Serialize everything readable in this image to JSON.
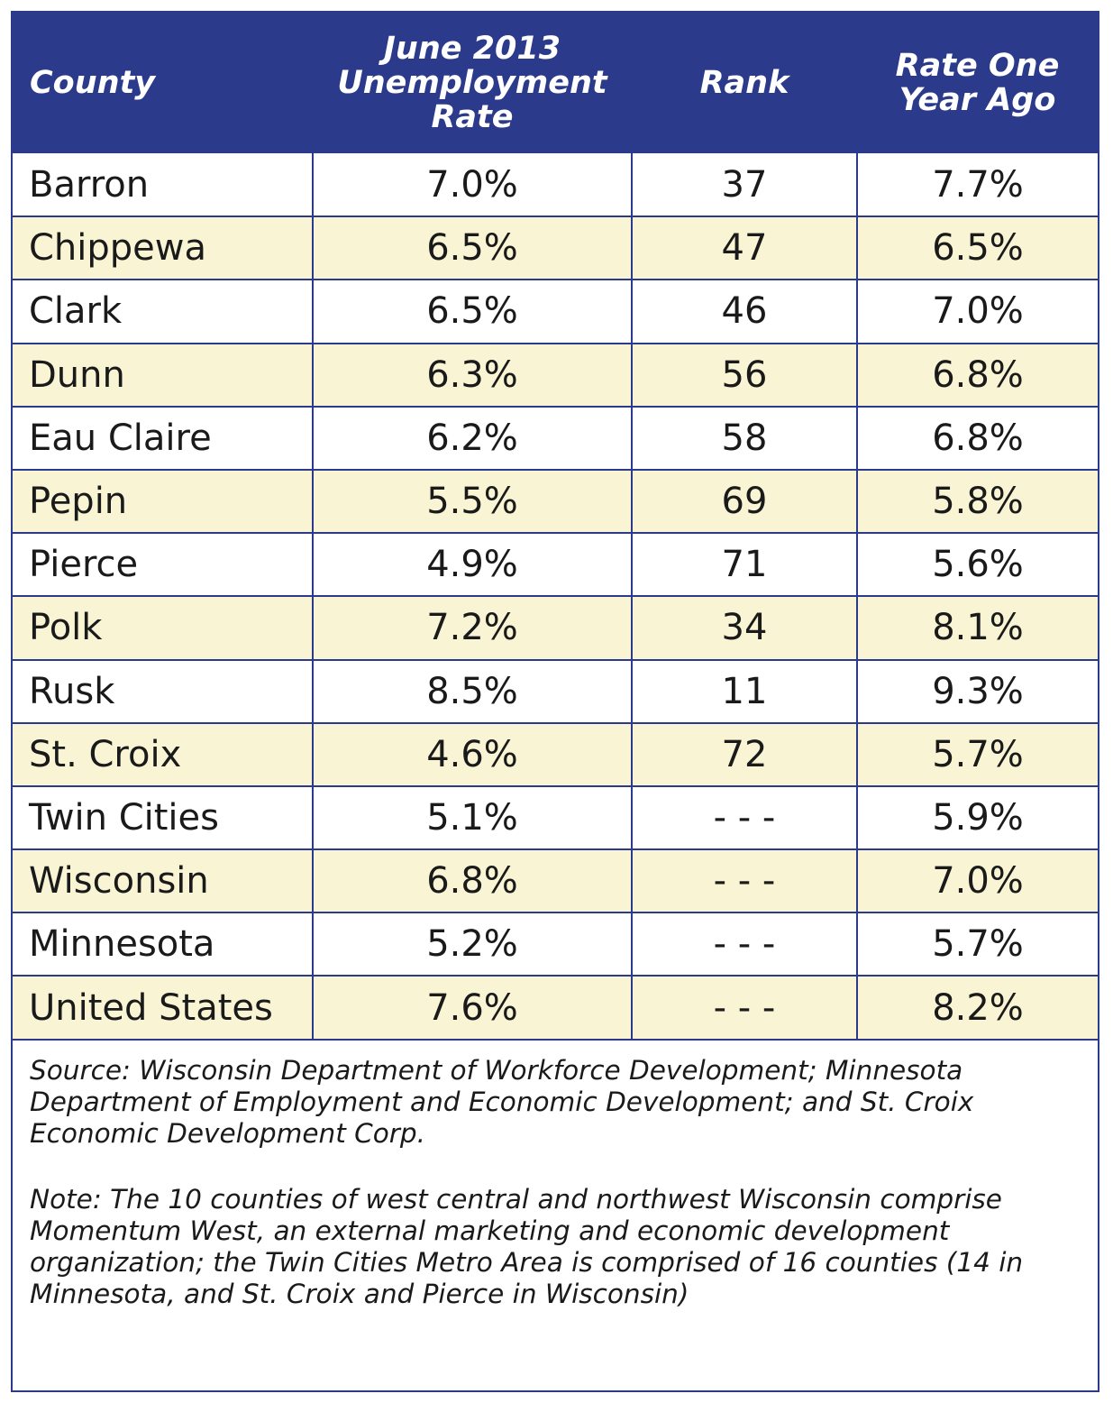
{
  "table": {
    "headers": {
      "county": "County",
      "rate_line1": "June 2013",
      "rate_line2": "Unemployment",
      "rate_line3": "Rate",
      "rank": "Rank",
      "ago_line1": "Rate One",
      "ago_line2": "Year Ago"
    },
    "rows": [
      {
        "county": "Barron",
        "rate": "7.0%",
        "rank": "37",
        "ago": "7.7%"
      },
      {
        "county": "Chippewa",
        "rate": "6.5%",
        "rank": "47",
        "ago": "6.5%"
      },
      {
        "county": "Clark",
        "rate": "6.5%",
        "rank": "46",
        "ago": "7.0%"
      },
      {
        "county": "Dunn",
        "rate": "6.3%",
        "rank": "56",
        "ago": "6.8%"
      },
      {
        "county": "Eau Claire",
        "rate": "6.2%",
        "rank": "58",
        "ago": "6.8%"
      },
      {
        "county": "Pepin",
        "rate": "5.5%",
        "rank": "69",
        "ago": "5.8%"
      },
      {
        "county": "Pierce",
        "rate": "4.9%",
        "rank": "71",
        "ago": "5.6%"
      },
      {
        "county": "Polk",
        "rate": "7.2%",
        "rank": "34",
        "ago": "8.1%"
      },
      {
        "county": "Rusk",
        "rate": "8.5%",
        "rank": "11",
        "ago": "9.3%"
      },
      {
        "county": "St. Croix",
        "rate": "4.6%",
        "rank": "72",
        "ago": "5.7%"
      },
      {
        "county": "Twin Cities",
        "rate": "5.1%",
        "rank": "- - -",
        "ago": "5.9%"
      },
      {
        "county": "Wisconsin",
        "rate": "6.8%",
        "rank": "- - -",
        "ago": "7.0%"
      },
      {
        "county": "Minnesota",
        "rate": "5.2%",
        "rank": "- - -",
        "ago": "5.7%"
      },
      {
        "county": "United States",
        "rate": "7.6%",
        "rank": "- - -",
        "ago": "8.2%"
      }
    ]
  },
  "source": "Source: Wisconsin Department of Workforce Development; Minnesota Department of Employment and Economic Development; and St. Croix Economic Development Corp.",
  "note": "Note: The 10 counties of west central and northwest Wisconsin comprise Momentum West, an external marketing and economic development organization; the Twin Cities Metro Area is comprised of 16 counties (14 in Minnesota, and St. Croix and Pierce in Wisconsin)",
  "colors": {
    "header_bg": "#2b3a8a",
    "header_text": "#ffffff",
    "stripe": "#f9f5d4",
    "border": "#2b3a8a"
  }
}
